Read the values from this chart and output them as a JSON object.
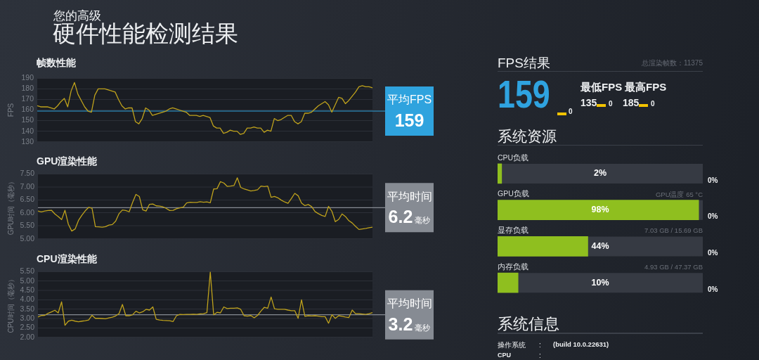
{
  "chart_data": [
    {
      "type": "other",
      "subtitle": "您的高级",
      "title": "硬件性能检测结果"
    },
    {
      "type": "line",
      "title": "帧数性能",
      "ylabel": "FPS",
      "categories": [
        null,
        null,
        null,
        null,
        null,
        null,
        null,
        null,
        null,
        null,
        null,
        null,
        null,
        null,
        null,
        null,
        null,
        null,
        null,
        null,
        null,
        null,
        null,
        null,
        null,
        null,
        null,
        null,
        null,
        null,
        null,
        null,
        null,
        null,
        null,
        null,
        null,
        null,
        null,
        null,
        null,
        null,
        null,
        null,
        null,
        null,
        null,
        null,
        null,
        null,
        null,
        null,
        null,
        null,
        null,
        null,
        null,
        null,
        null,
        null,
        null,
        null,
        null,
        null,
        null,
        null,
        null,
        null,
        null,
        null,
        null,
        null,
        null,
        null,
        null,
        null,
        null,
        null,
        null,
        null,
        null,
        null,
        null,
        null,
        null,
        null,
        null,
        null,
        null,
        null,
        null,
        null,
        null,
        null,
        null,
        null,
        null,
        null,
        null,
        null
      ],
      "values": [
        164,
        163,
        163,
        163,
        162,
        161,
        164,
        168,
        171,
        163,
        178,
        186,
        175,
        169,
        163,
        159,
        158,
        174,
        180,
        180,
        180,
        179,
        178,
        177,
        170,
        164,
        161,
        162,
        162,
        149,
        147,
        152,
        162,
        160,
        155,
        156,
        157,
        158,
        159,
        161,
        162,
        161,
        160,
        159,
        158,
        155,
        155,
        155,
        154,
        155,
        154,
        153,
        145,
        143,
        143,
        138,
        139,
        141,
        140,
        140,
        137,
        138,
        143,
        143,
        144,
        143,
        143,
        139,
        141,
        140,
        152,
        150,
        151,
        153,
        155,
        155,
        149,
        147,
        149,
        157,
        157,
        158,
        161,
        164,
        166,
        168,
        165,
        158,
        165,
        172,
        171,
        166,
        169,
        173,
        177,
        182,
        183,
        182,
        182,
        181
      ],
      "color": "#bfa21c",
      "ylim": [
        130,
        190
      ],
      "yticks": [
        130,
        140,
        150,
        160,
        170,
        180,
        190
      ],
      "grid": "y",
      "tick_labels": "y",
      "ref_lines": [
        {
          "axis": "y",
          "value": 159,
          "label": "平均FPS\n159",
          "color": "#2fa3de"
        }
      ]
    },
    {
      "type": "line",
      "title": "GPU渲染性能",
      "ylabel": "GPU时间（毫秒）",
      "categories": [
        null,
        null,
        null,
        null,
        null,
        null,
        null,
        null,
        null,
        null,
        null,
        null,
        null,
        null,
        null,
        null,
        null,
        null,
        null,
        null,
        null,
        null,
        null,
        null,
        null,
        null,
        null,
        null,
        null,
        null,
        null,
        null,
        null,
        null,
        null,
        null,
        null,
        null,
        null,
        null,
        null,
        null,
        null,
        null,
        null,
        null,
        null,
        null,
        null,
        null,
        null,
        null,
        null,
        null,
        null,
        null,
        null,
        null,
        null,
        null,
        null,
        null,
        null,
        null,
        null,
        null,
        null,
        null,
        null,
        null,
        null,
        null,
        null,
        null,
        null,
        null,
        null,
        null,
        null,
        null,
        null,
        null,
        null,
        null,
        null,
        null,
        null,
        null,
        null,
        null,
        null,
        null,
        null,
        null,
        null,
        null,
        null,
        null,
        null,
        null
      ],
      "values": [
        6.07,
        6.04,
        6.07,
        6.09,
        6.1,
        5.96,
        5.86,
        5.74,
        6.1,
        5.56,
        5.3,
        5.38,
        5.71,
        5.91,
        6.08,
        6.21,
        6.18,
        5.47,
        5.46,
        5.45,
        5.47,
        5.53,
        5.55,
        5.68,
        5.97,
        6.11,
        6.09,
        6.04,
        6.4,
        6.71,
        6.63,
        6.12,
        6.07,
        6.33,
        6.34,
        6.27,
        6.26,
        6.23,
        6.17,
        6.09,
        6.1,
        6.16,
        6.19,
        6.22,
        6.38,
        6.41,
        6.4,
        6.4,
        6.43,
        6.41,
        6.42,
        6.39,
        6.92,
        6.93,
        7.2,
        7.15,
        7.02,
        7.03,
        7.05,
        7.35,
        6.98,
        6.92,
        6.88,
        6.84,
        6.86,
        6.89,
        7.03,
        7.01,
        7.03,
        6.6,
        6.63,
        6.58,
        6.49,
        6.42,
        6.37,
        6.55,
        6.75,
        6.66,
        6.38,
        6.28,
        6.32,
        6.24,
        6.05,
        5.97,
        5.9,
        5.86,
        6.25,
        6.06,
        5.66,
        5.75,
        5.96,
        5.86,
        5.7,
        5.61,
        5.48,
        5.36,
        5.38,
        5.4,
        5.43,
        5.45
      ],
      "color": "#bfa21c",
      "ylim": [
        5,
        7.5
      ],
      "yticks": [
        {
          "value": 5,
          "label": "5.00"
        },
        {
          "value": 5.5,
          "label": "5.50"
        },
        {
          "value": 6,
          "label": "6.00"
        },
        {
          "value": 6.5,
          "label": "6.50"
        },
        {
          "value": 7,
          "label": "7.00"
        },
        {
          "value": 7.5,
          "label": "7.50"
        }
      ],
      "grid": "y",
      "tick_labels": "y",
      "ref_lines": [
        {
          "axis": "y",
          "value": 6.2,
          "label": "平均时间\n6.2毫秒",
          "color": "#868b93"
        }
      ]
    },
    {
      "type": "line",
      "title": "CPU渲染性能",
      "ylabel": "CPU时间（毫秒）",
      "categories": [
        null,
        null,
        null,
        null,
        null,
        null,
        null,
        null,
        null,
        null,
        null,
        null,
        null,
        null,
        null,
        null,
        null,
        null,
        null,
        null,
        null,
        null,
        null,
        null,
        null,
        null,
        null,
        null,
        null,
        null,
        null,
        null,
        null,
        null,
        null,
        null,
        null,
        null,
        null,
        null,
        null,
        null,
        null,
        null,
        null,
        null,
        null,
        null,
        null,
        null,
        null,
        null,
        null,
        null,
        null,
        null,
        null,
        null,
        null,
        null,
        null,
        null,
        null,
        null,
        null,
        null,
        null,
        null,
        null,
        null,
        null,
        null,
        null,
        null,
        null,
        null,
        null,
        null,
        null,
        null,
        null,
        null,
        null,
        null,
        null,
        null,
        null,
        null,
        null,
        null,
        null,
        null,
        null,
        null,
        null,
        null,
        null,
        null,
        null,
        null
      ],
      "values": [
        3.08,
        3.16,
        3.17,
        3.28,
        3.35,
        3.44,
        3.3,
        3.89,
        2.64,
        2.86,
        2.91,
        2.86,
        2.83,
        2.86,
        2.88,
        2.92,
        3.17,
        3.01,
        3.01,
        3.0,
        2.99,
        3.03,
        3.07,
        3.14,
        3.26,
        3.75,
        3.15,
        3.15,
        3.2,
        3.39,
        3.3,
        3.36,
        3.49,
        3.45,
        3.62,
        2.96,
        2.92,
        2.9,
        2.89,
        2.88,
        2.84,
        3.15,
        3.22,
        3.21,
        3.22,
        3.22,
        3.23,
        3.22,
        3.25,
        3.26,
        3.31,
        5.48,
        3.2,
        3.33,
        3.3,
        3.62,
        3.53,
        3.55,
        3.55,
        3.57,
        3.49,
        3.15,
        3.13,
        3.16,
        3.04,
        3.17,
        3.4,
        3.6,
        3.55,
        4.15,
        3.52,
        3.49,
        3.49,
        3.49,
        3.45,
        3.42,
        3.42,
        3.01,
        4.0,
        3.12,
        3.15,
        3.14,
        3.15,
        3.13,
        3.1,
        3.1,
        2.75,
        3.2,
        3.01,
        3.15,
        3.12,
        3.08,
        3.05,
        3.45,
        3.26,
        3.26,
        3.24,
        3.22,
        3.26,
        3.31
      ],
      "color": "#bfa21c",
      "ylim": [
        2,
        5.5
      ],
      "yticks": [
        {
          "value": 2,
          "label": "2.00"
        },
        {
          "value": 2.5,
          "label": "2.50"
        },
        {
          "value": 3,
          "label": "3.00"
        },
        {
          "value": 3.5,
          "label": "3.50"
        },
        {
          "value": 4,
          "label": "4.00"
        },
        {
          "value": 4.5,
          "label": "4.50"
        },
        {
          "value": 5,
          "label": "5.00"
        },
        {
          "value": 5.5,
          "label": "5.50"
        }
      ],
      "grid": "y",
      "tick_labels": "y",
      "ref_lines": [
        {
          "axis": "y",
          "value": 3.2,
          "label": "平均时间\n3.2毫秒",
          "color": "#868b93"
        }
      ]
    },
    {
      "type": "other",
      "title": "FPS结果",
      "annotations": [
        "总渲染帧数：11375",
        "159",
        "0",
        "最低FPS",
        "最高FPS",
        "135",
        "0",
        "185",
        "0"
      ]
    },
    {
      "type": "bar",
      "title": "系统资源",
      "orientation": "horizontal",
      "categories": [
        "CPU负载",
        "GPU负载",
        "显存负载",
        "内存负载"
      ],
      "values": [
        2,
        98,
        44,
        10
      ],
      "color": "#8fbf1f",
      "value_labels": [
        "2%",
        "98%",
        "44%",
        "10%"
      ],
      "xlim": [
        0,
        100
      ],
      "tick_labels": "y",
      "annotations": [
        "0%",
        "GPU温度 65 °C",
        "0%",
        "7.03 GB / 15.69 GB",
        "0%",
        "4.93 GB / 47.37 GB",
        "0%"
      ]
    },
    {
      "type": "other",
      "title": "系统信息",
      "annotations": [
        "操作系统",
        ":",
        "(build 10.0.22631)",
        "CPU",
        ":"
      ]
    }
  ]
}
